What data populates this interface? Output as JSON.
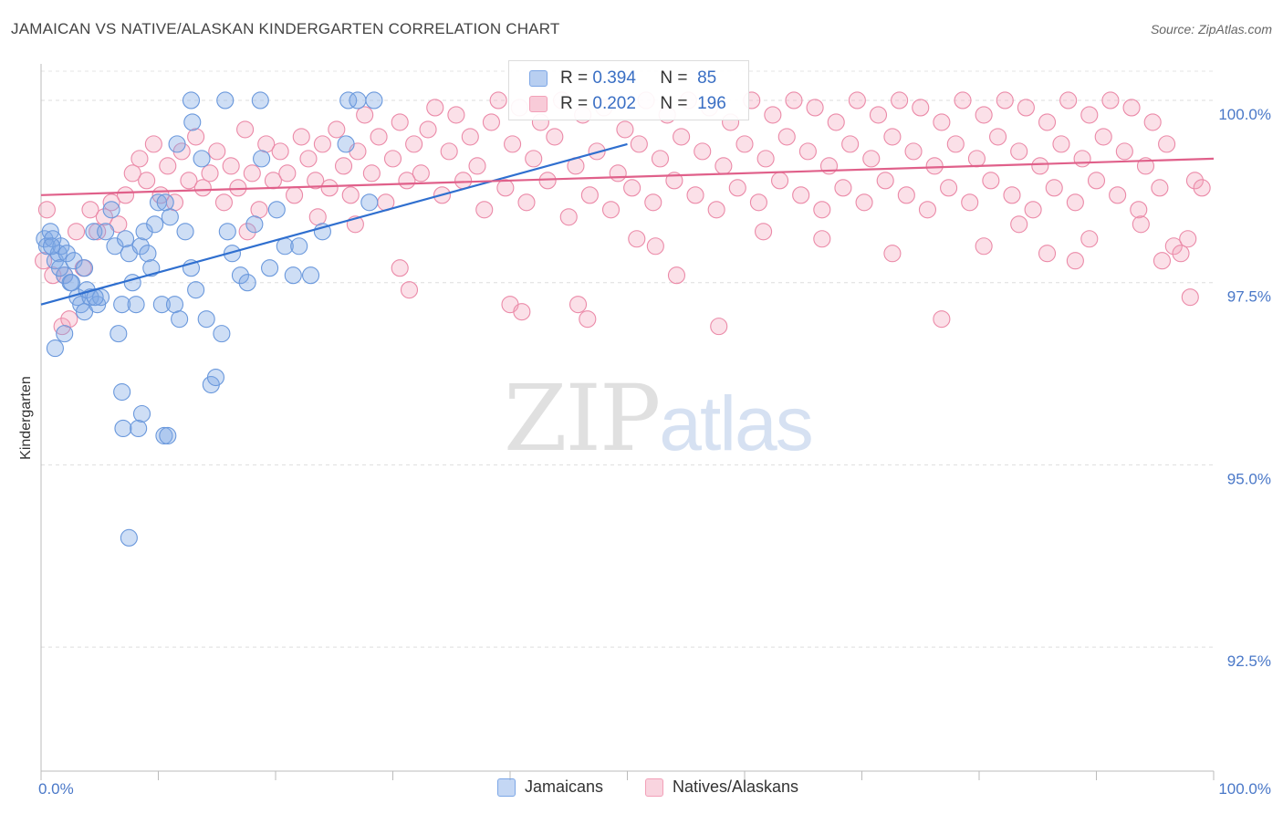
{
  "title": "JAMAICAN VS NATIVE/ALASKAN KINDERGARTEN CORRELATION CHART",
  "source": "Source: ZipAtlas.com",
  "watermark": {
    "zip": "ZIP",
    "atlas": "atlas"
  },
  "legend_top": {
    "rows": [
      {
        "r_label": "R =",
        "r_value": "0.394",
        "n_label": "N =",
        "n_value": "85",
        "color": "#7da7e6"
      },
      {
        "r_label": "R =",
        "r_value": "0.202",
        "n_label": "N =",
        "n_value": "196",
        "color": "#f2a0b8"
      }
    ]
  },
  "legend_bottom": [
    {
      "label": "Jamaicans",
      "color": "#7da7e6"
    },
    {
      "label": "Natives/Alaskans",
      "color": "#f2a0b8"
    }
  ],
  "chart_data": {
    "type": "scatter",
    "title": "JAMAICAN VS NATIVE/ALASKAN KINDERGARTEN CORRELATION CHART",
    "xlabel": "",
    "ylabel": "Kindergarten",
    "xlim": [
      0,
      100
    ],
    "ylim": [
      90.8,
      100.5
    ],
    "x_tick_labels": [
      "0.0%",
      "100.0%"
    ],
    "y_ticks": [
      {
        "value": 100.0,
        "label": "100.0%"
      },
      {
        "value": 97.5,
        "label": "97.5%"
      },
      {
        "value": 95.0,
        "label": "95.0%"
      },
      {
        "value": 92.5,
        "label": "92.5%"
      }
    ],
    "grid": "horizontal-dashed",
    "legend_position": "bottom",
    "series": [
      {
        "name": "Jamaicans",
        "color": "#7da7e6",
        "stroke": "#6a98dc",
        "trend": {
          "x": [
            0,
            50
          ],
          "y": [
            97.2,
            99.4
          ]
        },
        "points": [
          [
            0.3,
            98.1
          ],
          [
            0.5,
            98.0
          ],
          [
            0.8,
            98.2
          ],
          [
            1.0,
            98.1
          ],
          [
            1.2,
            97.8
          ],
          [
            1.5,
            97.9
          ],
          [
            1.7,
            98.0
          ],
          [
            2.0,
            97.6
          ],
          [
            2.2,
            97.9
          ],
          [
            2.5,
            97.5
          ],
          [
            2.8,
            97.8
          ],
          [
            3.1,
            97.3
          ],
          [
            3.4,
            97.2
          ],
          [
            3.7,
            97.1
          ],
          [
            3.9,
            97.4
          ],
          [
            4.2,
            97.3
          ],
          [
            4.5,
            98.2
          ],
          [
            4.8,
            97.2
          ],
          [
            5.1,
            97.3
          ],
          [
            5.5,
            98.2
          ],
          [
            6.0,
            98.5
          ],
          [
            6.3,
            98.0
          ],
          [
            6.6,
            96.8
          ],
          [
            6.9,
            97.2
          ],
          [
            7.2,
            98.1
          ],
          [
            7.5,
            97.9
          ],
          [
            7.8,
            97.5
          ],
          [
            8.1,
            97.2
          ],
          [
            8.5,
            98.0
          ],
          [
            8.8,
            98.2
          ],
          [
            9.1,
            97.9
          ],
          [
            9.4,
            97.7
          ],
          [
            9.7,
            98.3
          ],
          [
            10.0,
            98.6
          ],
          [
            10.3,
            97.2
          ],
          [
            10.6,
            98.6
          ],
          [
            11.0,
            98.4
          ],
          [
            11.4,
            97.2
          ],
          [
            11.8,
            97.0
          ],
          [
            12.3,
            98.2
          ],
          [
            12.8,
            97.7
          ],
          [
            13.2,
            97.4
          ],
          [
            13.7,
            99.2
          ],
          [
            14.1,
            97.0
          ],
          [
            14.5,
            96.1
          ],
          [
            14.9,
            96.2
          ],
          [
            15.4,
            96.8
          ],
          [
            15.9,
            98.2
          ],
          [
            16.3,
            97.9
          ],
          [
            17.0,
            97.6
          ],
          [
            17.6,
            97.5
          ],
          [
            18.2,
            98.3
          ],
          [
            18.8,
            99.2
          ],
          [
            19.5,
            97.7
          ],
          [
            20.1,
            98.5
          ],
          [
            20.8,
            98.0
          ],
          [
            21.5,
            97.6
          ],
          [
            22.0,
            98.0
          ],
          [
            23.0,
            97.6
          ],
          [
            24.0,
            98.2
          ],
          [
            26.0,
            99.4
          ],
          [
            28.0,
            98.6
          ],
          [
            1.2,
            96.6
          ],
          [
            2.0,
            96.8
          ],
          [
            6.9,
            96.0
          ],
          [
            7.0,
            95.5
          ],
          [
            8.3,
            95.5
          ],
          [
            8.6,
            95.7
          ],
          [
            10.5,
            95.4
          ],
          [
            10.8,
            95.4
          ],
          [
            7.5,
            94.0
          ],
          [
            12.8,
            100.0
          ],
          [
            15.7,
            100.0
          ],
          [
            18.7,
            100.0
          ],
          [
            26.2,
            100.0
          ],
          [
            27.0,
            100.0
          ],
          [
            28.4,
            100.0
          ],
          [
            12.9,
            99.7
          ],
          [
            11.6,
            99.4
          ],
          [
            3.7,
            97.7
          ],
          [
            1.6,
            97.7
          ],
          [
            0.9,
            98.0
          ],
          [
            4.6,
            97.3
          ],
          [
            2.6,
            97.5
          ]
        ]
      },
      {
        "name": "Natives/Alaskans",
        "color": "#f2a0b8",
        "stroke": "#eb8aa8",
        "trend": {
          "x": [
            0,
            100
          ],
          "y": [
            98.7,
            99.2
          ]
        },
        "points": [
          [
            0.5,
            98.5
          ],
          [
            1.0,
            97.6
          ],
          [
            1.8,
            96.9
          ],
          [
            2.4,
            97.0
          ],
          [
            3.0,
            98.2
          ],
          [
            3.6,
            97.7
          ],
          [
            4.2,
            98.5
          ],
          [
            4.8,
            98.2
          ],
          [
            5.4,
            98.4
          ],
          [
            6.0,
            98.6
          ],
          [
            6.6,
            98.3
          ],
          [
            7.2,
            98.7
          ],
          [
            7.8,
            99.0
          ],
          [
            8.4,
            99.2
          ],
          [
            9.0,
            98.9
          ],
          [
            9.6,
            99.4
          ],
          [
            10.2,
            98.7
          ],
          [
            10.8,
            99.1
          ],
          [
            11.4,
            98.6
          ],
          [
            12.0,
            99.3
          ],
          [
            12.6,
            98.9
          ],
          [
            13.2,
            99.5
          ],
          [
            13.8,
            98.8
          ],
          [
            14.4,
            99.0
          ],
          [
            15.0,
            99.3
          ],
          [
            15.6,
            98.6
          ],
          [
            16.2,
            99.1
          ],
          [
            16.8,
            98.8
          ],
          [
            17.4,
            99.6
          ],
          [
            18.0,
            99.0
          ],
          [
            18.6,
            98.5
          ],
          [
            19.2,
            99.4
          ],
          [
            19.8,
            98.9
          ],
          [
            20.4,
            99.3
          ],
          [
            21.0,
            99.0
          ],
          [
            21.6,
            98.7
          ],
          [
            22.2,
            99.5
          ],
          [
            22.8,
            99.2
          ],
          [
            23.4,
            98.9
          ],
          [
            24.0,
            99.4
          ],
          [
            24.6,
            98.8
          ],
          [
            25.2,
            99.6
          ],
          [
            25.8,
            99.1
          ],
          [
            26.4,
            98.7
          ],
          [
            27.0,
            99.3
          ],
          [
            27.6,
            99.8
          ],
          [
            28.2,
            99.0
          ],
          [
            28.8,
            99.5
          ],
          [
            29.4,
            98.6
          ],
          [
            30.0,
            99.2
          ],
          [
            30.6,
            99.7
          ],
          [
            31.2,
            98.9
          ],
          [
            31.8,
            99.4
          ],
          [
            32.4,
            99.0
          ],
          [
            33.0,
            99.6
          ],
          [
            33.6,
            99.9
          ],
          [
            34.2,
            98.7
          ],
          [
            34.8,
            99.3
          ],
          [
            35.4,
            99.8
          ],
          [
            36.0,
            98.9
          ],
          [
            36.6,
            99.5
          ],
          [
            37.2,
            99.1
          ],
          [
            37.8,
            98.5
          ],
          [
            38.4,
            99.7
          ],
          [
            39.0,
            100.0
          ],
          [
            39.6,
            98.8
          ],
          [
            40.2,
            99.4
          ],
          [
            40.8,
            99.9
          ],
          [
            41.4,
            98.6
          ],
          [
            42.0,
            99.2
          ],
          [
            42.6,
            99.7
          ],
          [
            43.2,
            98.9
          ],
          [
            43.8,
            99.5
          ],
          [
            44.4,
            100.0
          ],
          [
            45.0,
            98.4
          ],
          [
            45.6,
            99.1
          ],
          [
            46.2,
            99.8
          ],
          [
            46.8,
            98.7
          ],
          [
            47.4,
            99.3
          ],
          [
            48.0,
            99.9
          ],
          [
            48.6,
            98.5
          ],
          [
            49.2,
            99.0
          ],
          [
            49.8,
            99.6
          ],
          [
            50.4,
            98.8
          ],
          [
            51.0,
            99.4
          ],
          [
            51.6,
            100.0
          ],
          [
            52.2,
            98.6
          ],
          [
            52.8,
            99.2
          ],
          [
            53.4,
            99.8
          ],
          [
            54.0,
            98.9
          ],
          [
            54.6,
            99.5
          ],
          [
            55.2,
            100.0
          ],
          [
            55.8,
            98.7
          ],
          [
            56.4,
            99.3
          ],
          [
            57.0,
            99.9
          ],
          [
            57.6,
            98.5
          ],
          [
            58.2,
            99.1
          ],
          [
            58.8,
            99.7
          ],
          [
            59.4,
            98.8
          ],
          [
            60.0,
            99.4
          ],
          [
            60.6,
            100.0
          ],
          [
            61.2,
            98.6
          ],
          [
            61.8,
            99.2
          ],
          [
            62.4,
            99.8
          ],
          [
            63.0,
            98.9
          ],
          [
            63.6,
            99.5
          ],
          [
            64.2,
            100.0
          ],
          [
            64.8,
            98.7
          ],
          [
            65.4,
            99.3
          ],
          [
            66.0,
            99.9
          ],
          [
            66.6,
            98.5
          ],
          [
            67.2,
            99.1
          ],
          [
            67.8,
            99.7
          ],
          [
            68.4,
            98.8
          ],
          [
            69.0,
            99.4
          ],
          [
            69.6,
            100.0
          ],
          [
            70.2,
            98.6
          ],
          [
            70.8,
            99.2
          ],
          [
            71.4,
            99.8
          ],
          [
            72.0,
            98.9
          ],
          [
            72.6,
            99.5
          ],
          [
            73.2,
            100.0
          ],
          [
            73.8,
            98.7
          ],
          [
            74.4,
            99.3
          ],
          [
            75.0,
            99.9
          ],
          [
            75.6,
            98.5
          ],
          [
            76.2,
            99.1
          ],
          [
            76.8,
            99.7
          ],
          [
            77.4,
            98.8
          ],
          [
            78.0,
            99.4
          ],
          [
            78.6,
            100.0
          ],
          [
            79.2,
            98.6
          ],
          [
            79.8,
            99.2
          ],
          [
            80.4,
            99.8
          ],
          [
            81.0,
            98.9
          ],
          [
            81.6,
            99.5
          ],
          [
            82.2,
            100.0
          ],
          [
            82.8,
            98.7
          ],
          [
            83.4,
            99.3
          ],
          [
            84.0,
            99.9
          ],
          [
            84.6,
            98.5
          ],
          [
            85.2,
            99.1
          ],
          [
            85.8,
            99.7
          ],
          [
            86.4,
            98.8
          ],
          [
            87.0,
            99.4
          ],
          [
            87.6,
            100.0
          ],
          [
            88.2,
            98.6
          ],
          [
            88.8,
            99.2
          ],
          [
            89.4,
            99.8
          ],
          [
            90.0,
            98.9
          ],
          [
            90.6,
            99.5
          ],
          [
            91.2,
            100.0
          ],
          [
            91.8,
            98.7
          ],
          [
            92.4,
            99.3
          ],
          [
            93.0,
            99.9
          ],
          [
            93.6,
            98.5
          ],
          [
            94.2,
            99.1
          ],
          [
            94.8,
            99.7
          ],
          [
            95.4,
            98.8
          ],
          [
            96.0,
            99.4
          ],
          [
            96.6,
            98.0
          ],
          [
            97.2,
            97.9
          ],
          [
            97.8,
            98.1
          ],
          [
            98.4,
            98.9
          ],
          [
            99.0,
            98.8
          ],
          [
            98.0,
            97.3
          ],
          [
            17.6,
            98.2
          ],
          [
            23.6,
            98.4
          ],
          [
            26.8,
            98.3
          ],
          [
            30.6,
            97.7
          ],
          [
            31.4,
            97.4
          ],
          [
            40.0,
            97.2
          ],
          [
            41.0,
            97.1
          ],
          [
            45.8,
            97.2
          ],
          [
            46.6,
            97.0
          ],
          [
            50.8,
            98.1
          ],
          [
            52.4,
            98.0
          ],
          [
            54.2,
            97.6
          ],
          [
            57.8,
            96.9
          ],
          [
            61.6,
            98.2
          ],
          [
            66.6,
            98.1
          ],
          [
            72.6,
            97.9
          ],
          [
            76.8,
            97.0
          ],
          [
            80.4,
            98.0
          ],
          [
            83.4,
            98.3
          ],
          [
            85.8,
            97.9
          ],
          [
            88.2,
            97.8
          ],
          [
            89.4,
            98.1
          ],
          [
            93.8,
            98.3
          ],
          [
            95.6,
            97.8
          ],
          [
            0.2,
            97.8
          ],
          [
            2.0,
            97.6
          ]
        ]
      }
    ]
  }
}
